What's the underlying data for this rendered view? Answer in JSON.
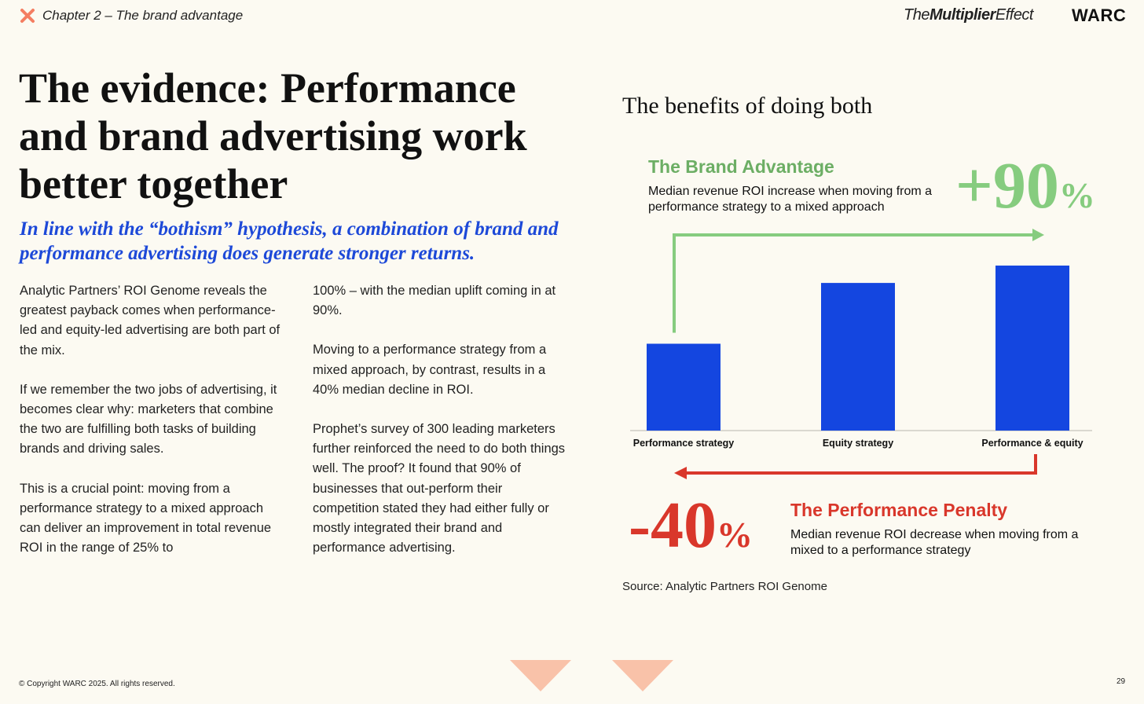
{
  "header": {
    "chapter_title": "Chapter 2 – The brand advantage",
    "series_prefix": "The",
    "series_bold": "Multiplier",
    "series_suffix": "Effect",
    "publisher": "WARC",
    "chapter_icon": "x-mark-icon",
    "chapter_icon_color": "#f47e62"
  },
  "headline": "The evidence: Performance and brand advertising work better together",
  "subhead": "In line with the “bothism” hypothesis, a combination of brand and performance advertising does generate stronger returns.",
  "body_left": [
    "Analytic Partners’ ROI Genome reveals the greatest payback comes when performance-led and equity-led advertising are both part of the mix.",
    "If we remember the two jobs of advertising, it becomes clear why: marketers that combine the two are fulfilling both tasks of building brands and driving sales.",
    "This is a crucial point: moving from a performance strategy to a mixed approach can deliver an improvement in total revenue ROI in the range of 25% to"
  ],
  "body_right": [
    "100% – with the median uplift coming in at 90%.",
    "Moving to a performance strategy from a mixed approach, by contrast, results in a 40% median decline in ROI.",
    "Prophet’s survey of 300 leading marketers further reinforced the need to do both things well. The proof? It found that 90% of businesses that out-perform their competition stated they had either fully or mostly integrated their brand and performance advertising."
  ],
  "chart_data": {
    "type": "bar",
    "title": "The benefits of doing both",
    "categories": [
      "Performance strategy",
      "Equity strategy",
      "Performance & equity"
    ],
    "values": [
      1.0,
      1.7,
      1.9
    ],
    "value_note": "",
    "bar_color": "#1446e0",
    "grid": false,
    "annotations": {
      "brand_advantage": {
        "title": "The Brand Advantage",
        "description": "Median revenue ROI increase when moving from a performance strategy to a mixed approach",
        "value": "+90",
        "unit": "%",
        "color": "#86cc7f"
      },
      "performance_penalty": {
        "title": "The Performance Penalty",
        "description": "Median revenue ROI decrease when moving from a mixed to a performance strategy",
        "value": "-40",
        "unit": "%",
        "color": "#d9372b"
      }
    },
    "source": "Source: Analytic Partners ROI Genome"
  },
  "footer": {
    "copyright": "© Copyright WARC 2025. All rights reserved.",
    "page_number": "29",
    "nav_color": "#f9c2a9"
  }
}
